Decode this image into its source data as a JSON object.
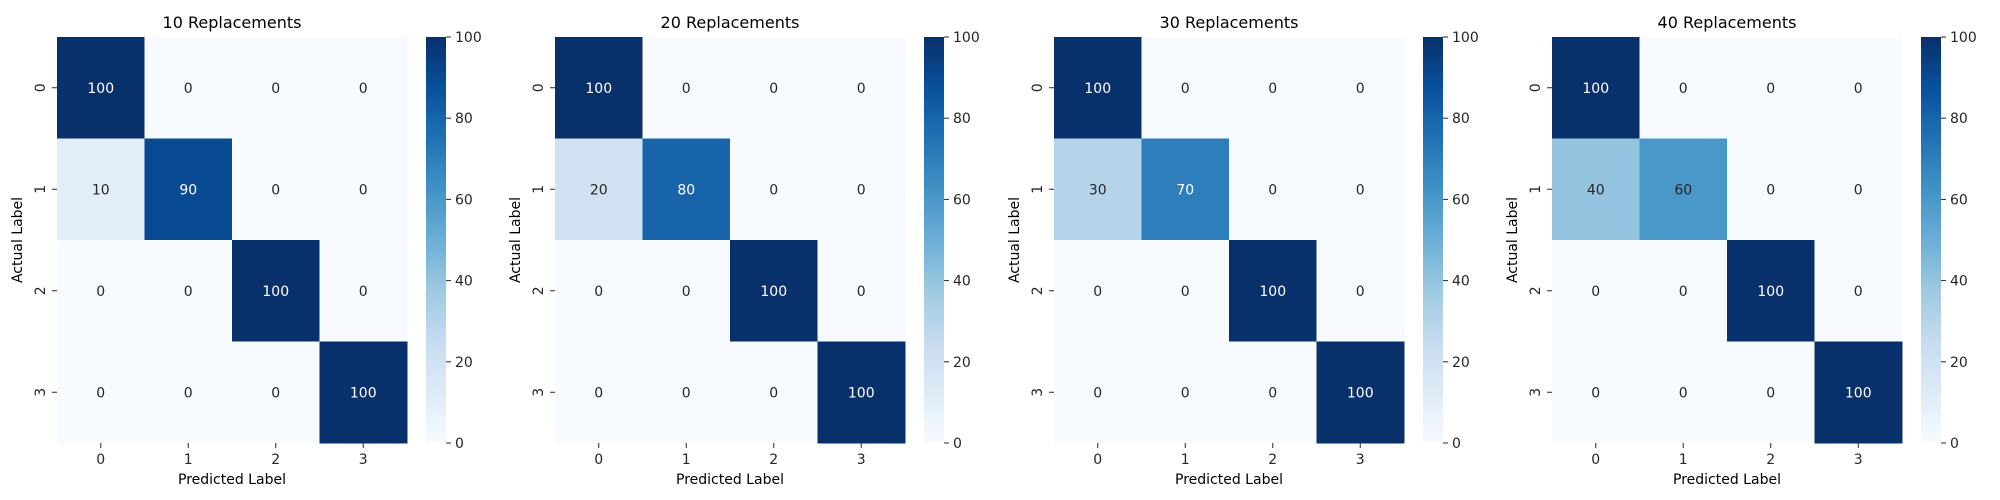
{
  "chart_data": [
    {
      "type": "heatmap",
      "title": "10 Replacements",
      "xlabel": "Predicted Label",
      "ylabel": "Actual Label",
      "x_categories": [
        "0",
        "1",
        "2",
        "3"
      ],
      "y_categories": [
        "0",
        "1",
        "2",
        "3"
      ],
      "values": [
        [
          100,
          0,
          0,
          0
        ],
        [
          10,
          90,
          0,
          0
        ],
        [
          0,
          0,
          100,
          0
        ],
        [
          0,
          0,
          0,
          100
        ]
      ],
      "colorbar": {
        "range": [
          0,
          100
        ],
        "ticks": [
          0,
          20,
          40,
          60,
          80,
          100
        ],
        "colormap": "Blues"
      }
    },
    {
      "type": "heatmap",
      "title": "20 Replacements",
      "xlabel": "Predicted Label",
      "ylabel": "Actual Label",
      "x_categories": [
        "0",
        "1",
        "2",
        "3"
      ],
      "y_categories": [
        "0",
        "1",
        "2",
        "3"
      ],
      "values": [
        [
          100,
          0,
          0,
          0
        ],
        [
          20,
          80,
          0,
          0
        ],
        [
          0,
          0,
          100,
          0
        ],
        [
          0,
          0,
          0,
          100
        ]
      ],
      "colorbar": {
        "range": [
          0,
          100
        ],
        "ticks": [
          0,
          20,
          40,
          60,
          80,
          100
        ],
        "colormap": "Blues"
      }
    },
    {
      "type": "heatmap",
      "title": "30 Replacements",
      "xlabel": "Predicted Label",
      "ylabel": "Actual Label",
      "x_categories": [
        "0",
        "1",
        "2",
        "3"
      ],
      "y_categories": [
        "0",
        "1",
        "2",
        "3"
      ],
      "values": [
        [
          100,
          0,
          0,
          0
        ],
        [
          30,
          70,
          0,
          0
        ],
        [
          0,
          0,
          100,
          0
        ],
        [
          0,
          0,
          0,
          100
        ]
      ],
      "colorbar": {
        "range": [
          0,
          100
        ],
        "ticks": [
          0,
          20,
          40,
          60,
          80,
          100
        ],
        "colormap": "Blues"
      }
    },
    {
      "type": "heatmap",
      "title": "40 Replacements",
      "xlabel": "Predicted Label",
      "ylabel": "Actual Label",
      "x_categories": [
        "0",
        "1",
        "2",
        "3"
      ],
      "y_categories": [
        "0",
        "1",
        "2",
        "3"
      ],
      "values": [
        [
          100,
          0,
          0,
          0
        ],
        [
          40,
          60,
          0,
          0
        ],
        [
          0,
          0,
          100,
          0
        ],
        [
          0,
          0,
          0,
          100
        ]
      ],
      "colorbar": {
        "range": [
          0,
          100
        ],
        "ticks": [
          0,
          20,
          40,
          60,
          80,
          100
        ],
        "colormap": "Blues"
      }
    }
  ]
}
